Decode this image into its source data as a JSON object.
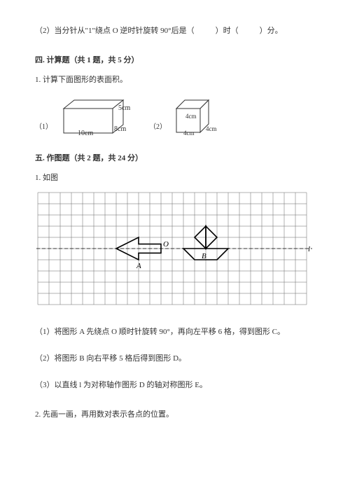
{
  "top_question": {
    "text_prefix": "（2）当分针从\"1\"绕点 O 逆时针旋转 90°后是（",
    "blank1": "　　",
    "mid": "）时（",
    "blank2": "　　",
    "suffix": "）分。"
  },
  "section4": {
    "title": "四. 计算题（共 1 题，共 5 分）",
    "q1": "1. 计算下面图形的表面积。",
    "fig1": {
      "label": "（1）",
      "w": "10cm",
      "d": "8cm",
      "h": "5cm",
      "stroke": "#333333",
      "fill": "#ffffff"
    },
    "fig2": {
      "label": "（2）",
      "edge": "4cm",
      "stroke": "#333333",
      "fill": "#ffffff"
    }
  },
  "section5": {
    "title": "五. 作图题（共 2 题，共 24 分）",
    "q1": "1. 如图",
    "grid": {
      "cols": 24,
      "rows": 10,
      "cell": 16,
      "line_color": "#666666",
      "dash_color": "#333333",
      "label_O": "O",
      "label_A": "A",
      "label_B": "B",
      "label_l": "l",
      "shape_stroke": "#000000",
      "shape_fill": "none"
    },
    "sub1": "（1）将图形 A 先绕点 O 顺时针旋转 90°，再向左平移 6 格，得到图形 C。",
    "sub2": "（2）将图形 B 向右平移 5 格后得到图形 D。",
    "sub3": "（3）以直线 l 为对称轴作图形 D 的轴对称图形 E。",
    "q2": "2. 先画一画，再用数对表示各点的位置。"
  }
}
